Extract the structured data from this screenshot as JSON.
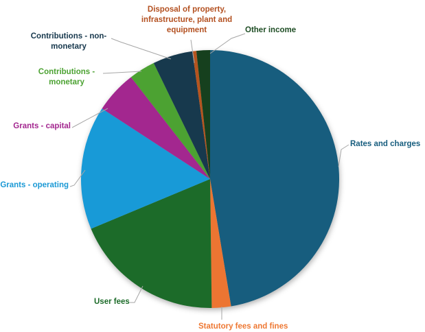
{
  "chart_data": {
    "type": "pie",
    "title": "",
    "value_unit": "percent_of_total_estimated",
    "start_angle_deg": 0,
    "direction": "clockwise",
    "legend_position": "callout-labels",
    "background": "#ffffff",
    "leader_line_color": "#a6a6a6",
    "slices": [
      {
        "label": "Rates and charges",
        "value": 47.4,
        "color": "#175d7e",
        "label_color": "#175d7e"
      },
      {
        "label": "Statutory fees and fines",
        "value": 2.4,
        "color": "#ec7532",
        "label_color": "#ee7833"
      },
      {
        "label": "User fees",
        "value": 18.9,
        "color": "#1c6b29",
        "label_color": "#1c6b29"
      },
      {
        "label": "Grants - operating",
        "value": 15.5,
        "color": "#189ad7",
        "label_color": "#1b99d5"
      },
      {
        "label": "Grants - capital",
        "value": 5.3,
        "color": "#a3278f",
        "label_color": "#a3278f"
      },
      {
        "label": "Contributions - monetary",
        "value": 3.3,
        "color": "#4ca232",
        "label_color": "#4ca232"
      },
      {
        "label": "Contributions - non-monetary",
        "value": 5.0,
        "color": "#17394d",
        "label_color": "#17384d"
      },
      {
        "label": "Disposal of property, infrastructure, plant and equipment",
        "value": 0.5,
        "color": "#b5541f",
        "label_color": "#b35020"
      },
      {
        "label": "Other income",
        "value": 1.7,
        "color": "#16401e",
        "label_color": "#1e4d24"
      }
    ]
  }
}
